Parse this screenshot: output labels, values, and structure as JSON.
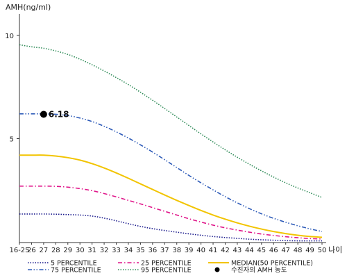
{
  "chart_data": {
    "type": "line",
    "ylabel": "AMH(ng/ml)",
    "xlabel": "나이",
    "ylim": [
      0,
      11
    ],
    "yticks": [
      5,
      10
    ],
    "categories": [
      "16-25",
      "26",
      "27",
      "28",
      "29",
      "30",
      "31",
      "32",
      "33",
      "34",
      "35",
      "36",
      "37",
      "38",
      "39",
      "40",
      "41",
      "42",
      "43",
      "44",
      "45",
      "46",
      "47",
      "48",
      "49",
      "50"
    ],
    "grid": false,
    "legend_position": "bottom",
    "series": [
      {
        "name": "5 PERCENTILE",
        "color": "#1a1a8c",
        "dash": "dotted",
        "values": [
          1.35,
          1.35,
          1.35,
          1.34,
          1.32,
          1.3,
          1.25,
          1.15,
          1.02,
          0.88,
          0.75,
          0.64,
          0.55,
          0.47,
          0.39,
          0.32,
          0.26,
          0.21,
          0.17,
          0.13,
          0.1,
          0.08,
          0.06,
          0.05,
          0.05,
          0.05
        ]
      },
      {
        "name": "25 PERCENTILE",
        "color": "#e0168a",
        "dash": "dashdot",
        "values": [
          2.7,
          2.7,
          2.7,
          2.69,
          2.65,
          2.58,
          2.48,
          2.34,
          2.18,
          2.01,
          1.84,
          1.66,
          1.48,
          1.3,
          1.12,
          0.96,
          0.81,
          0.68,
          0.57,
          0.47,
          0.38,
          0.31,
          0.25,
          0.2,
          0.16,
          0.14
        ]
      },
      {
        "name": "MEDIAN(50 PERCENTILE)",
        "color": "#f2c400",
        "dash": "solid",
        "values": [
          4.2,
          4.2,
          4.2,
          4.16,
          4.08,
          3.96,
          3.79,
          3.58,
          3.34,
          3.08,
          2.81,
          2.54,
          2.27,
          2.01,
          1.76,
          1.52,
          1.3,
          1.1,
          0.92,
          0.76,
          0.62,
          0.5,
          0.4,
          0.32,
          0.26,
          0.22
        ]
      },
      {
        "name": "75 PERCENTILE",
        "color": "#2e5bb8",
        "dash": "dashdotdot",
        "values": [
          6.2,
          6.2,
          6.2,
          6.18,
          6.12,
          6.0,
          5.83,
          5.6,
          5.33,
          5.03,
          4.7,
          4.35,
          3.98,
          3.6,
          3.22,
          2.86,
          2.52,
          2.19,
          1.89,
          1.61,
          1.36,
          1.14,
          0.95,
          0.78,
          0.63,
          0.5
        ]
      },
      {
        "name": "95 PERCENTILE",
        "color": "#2e8b57",
        "dash": "dotted",
        "values": [
          9.55,
          9.45,
          9.38,
          9.25,
          9.08,
          8.85,
          8.58,
          8.28,
          7.96,
          7.62,
          7.25,
          6.86,
          6.46,
          6.05,
          5.64,
          5.23,
          4.84,
          4.46,
          4.1,
          3.76,
          3.44,
          3.14,
          2.86,
          2.61,
          2.38,
          2.15
        ]
      }
    ],
    "marker": {
      "name": "수진자의 AMH 농도",
      "category": "27",
      "value": 6.18,
      "label": "6.18",
      "color": "#000000"
    }
  }
}
